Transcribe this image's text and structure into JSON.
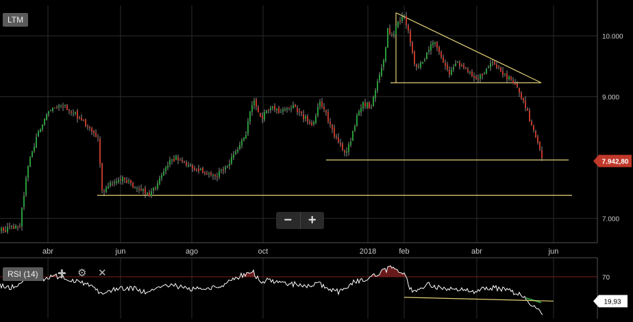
{
  "symbol_label": "LTM",
  "rsi_label": "RSI (14)",
  "zoom": {
    "out_label": "−",
    "in_label": "+"
  },
  "icons": {
    "add": "plus-icon",
    "settings": "gear-icon",
    "remove": "close-icon"
  },
  "colors": {
    "up": "#2a9b3a",
    "down": "#c0392b",
    "trendline": "#e6d27a",
    "price_tag": "#c0392b",
    "rsi_line": "#ffffff"
  },
  "chart_data": [
    {
      "type": "candlestick",
      "symbol": "LTM",
      "x_labels": [
        "abr",
        "jun",
        "ago",
        "oct",
        "2018",
        "feb",
        "abr",
        "jun"
      ],
      "y_ticks": [
        "10.000",
        "9.000",
        "7.000"
      ],
      "ylim": [
        6600,
        10500
      ],
      "last_price": "7.942,80",
      "grid": true,
      "price_path": [
        [
          0,
          6800
        ],
        [
          14,
          6820
        ],
        [
          28,
          6900
        ],
        [
          34,
          7400
        ],
        [
          42,
          8000
        ],
        [
          55,
          8400
        ],
        [
          65,
          8700
        ],
        [
          75,
          8850
        ],
        [
          90,
          8870
        ],
        [
          105,
          8750
        ],
        [
          120,
          8600
        ],
        [
          135,
          8450
        ],
        [
          142,
          8300
        ],
        [
          148,
          7450
        ],
        [
          160,
          7550
        ],
        [
          172,
          7600
        ],
        [
          182,
          7650
        ],
        [
          192,
          7550
        ],
        [
          205,
          7450
        ],
        [
          218,
          7400
        ],
        [
          230,
          7600
        ],
        [
          245,
          7900
        ],
        [
          255,
          8000
        ],
        [
          270,
          7900
        ],
        [
          285,
          7800
        ],
        [
          300,
          7750
        ],
        [
          315,
          7700
        ],
        [
          330,
          7850
        ],
        [
          345,
          8100
        ],
        [
          358,
          8400
        ],
        [
          368,
          8950
        ],
        [
          380,
          8650
        ],
        [
          395,
          8850
        ],
        [
          410,
          8750
        ],
        [
          425,
          8850
        ],
        [
          440,
          8700
        ],
        [
          455,
          8500
        ],
        [
          465,
          8900
        ],
        [
          475,
          8700
        ],
        [
          485,
          8400
        ],
        [
          495,
          8200
        ],
        [
          500,
          8050
        ],
        [
          510,
          8200
        ],
        [
          520,
          8700
        ],
        [
          530,
          8900
        ],
        [
          540,
          8800
        ],
        [
          550,
          9250
        ],
        [
          560,
          9600
        ],
        [
          565,
          10150
        ],
        [
          572,
          9950
        ],
        [
          580,
          10250
        ],
        [
          590,
          10300
        ],
        [
          598,
          9900
        ],
        [
          605,
          9500
        ],
        [
          615,
          9550
        ],
        [
          625,
          9800
        ],
        [
          635,
          9900
        ],
        [
          645,
          9600
        ],
        [
          655,
          9350
        ],
        [
          665,
          9550
        ],
        [
          675,
          9500
        ],
        [
          685,
          9400
        ],
        [
          695,
          9250
        ],
        [
          705,
          9400
        ],
        [
          715,
          9550
        ],
        [
          725,
          9500
        ],
        [
          735,
          9350
        ],
        [
          745,
          9300
        ],
        [
          755,
          9100
        ],
        [
          765,
          8900
        ],
        [
          772,
          8600
        ],
        [
          780,
          8400
        ],
        [
          788,
          8100
        ],
        [
          792,
          7942.8
        ]
      ],
      "trendlines": [
        {
          "name": "descending-resistance",
          "from": [
            578,
            10380
          ],
          "to": [
            790,
            9230
          ]
        },
        {
          "name": "triangle-base",
          "from": [
            570,
            9230
          ],
          "to": [
            790,
            9230
          ]
        },
        {
          "name": "mid-support",
          "from": [
            476,
            7960
          ],
          "to": [
            830,
            7960
          ]
        },
        {
          "name": "long-support",
          "from": [
            142,
            7380
          ],
          "to": [
            835,
            7380
          ]
        }
      ]
    },
    {
      "type": "line",
      "name": "RSI (14)",
      "y_ticks": [
        "70"
      ],
      "ylim": [
        15,
        95
      ],
      "last_value": "19,93",
      "reference_level": 70,
      "values": [
        [
          0,
          58
        ],
        [
          14,
          55
        ],
        [
          28,
          62
        ],
        [
          40,
          72
        ],
        [
          55,
          70
        ],
        [
          65,
          67
        ],
        [
          75,
          71
        ],
        [
          90,
          70
        ],
        [
          105,
          64
        ],
        [
          120,
          62
        ],
        [
          135,
          58
        ],
        [
          148,
          46
        ],
        [
          160,
          50
        ],
        [
          172,
          55
        ],
        [
          182,
          53
        ],
        [
          192,
          55
        ],
        [
          205,
          52
        ],
        [
          218,
          49
        ],
        [
          230,
          56
        ],
        [
          245,
          60
        ],
        [
          255,
          58
        ],
        [
          270,
          55
        ],
        [
          285,
          53
        ],
        [
          300,
          55
        ],
        [
          315,
          56
        ],
        [
          330,
          62
        ],
        [
          345,
          69
        ],
        [
          358,
          74
        ],
        [
          368,
          78
        ],
        [
          380,
          64
        ],
        [
          395,
          66
        ],
        [
          410,
          60
        ],
        [
          425,
          61
        ],
        [
          440,
          58
        ],
        [
          455,
          56
        ],
        [
          465,
          63
        ],
        [
          475,
          55
        ],
        [
          485,
          52
        ],
        [
          495,
          50
        ],
        [
          505,
          56
        ],
        [
          515,
          62
        ],
        [
          530,
          66
        ],
        [
          545,
          72
        ],
        [
          560,
          78
        ],
        [
          570,
          81
        ],
        [
          580,
          79
        ],
        [
          590,
          75
        ],
        [
          598,
          57
        ],
        [
          605,
          50
        ],
        [
          615,
          56
        ],
        [
          625,
          60
        ],
        [
          635,
          58
        ],
        [
          645,
          54
        ],
        [
          655,
          52
        ],
        [
          665,
          55
        ],
        [
          675,
          53
        ],
        [
          685,
          52
        ],
        [
          695,
          50
        ],
        [
          705,
          54
        ],
        [
          715,
          56
        ],
        [
          725,
          55
        ],
        [
          735,
          53
        ],
        [
          745,
          51
        ],
        [
          755,
          48
        ],
        [
          765,
          44
        ],
        [
          772,
          38
        ],
        [
          780,
          30
        ],
        [
          788,
          24
        ],
        [
          792,
          19.93
        ]
      ],
      "trendline": {
        "from": [
          590,
          43
        ],
        "to": [
          808,
          38
        ]
      }
    }
  ]
}
